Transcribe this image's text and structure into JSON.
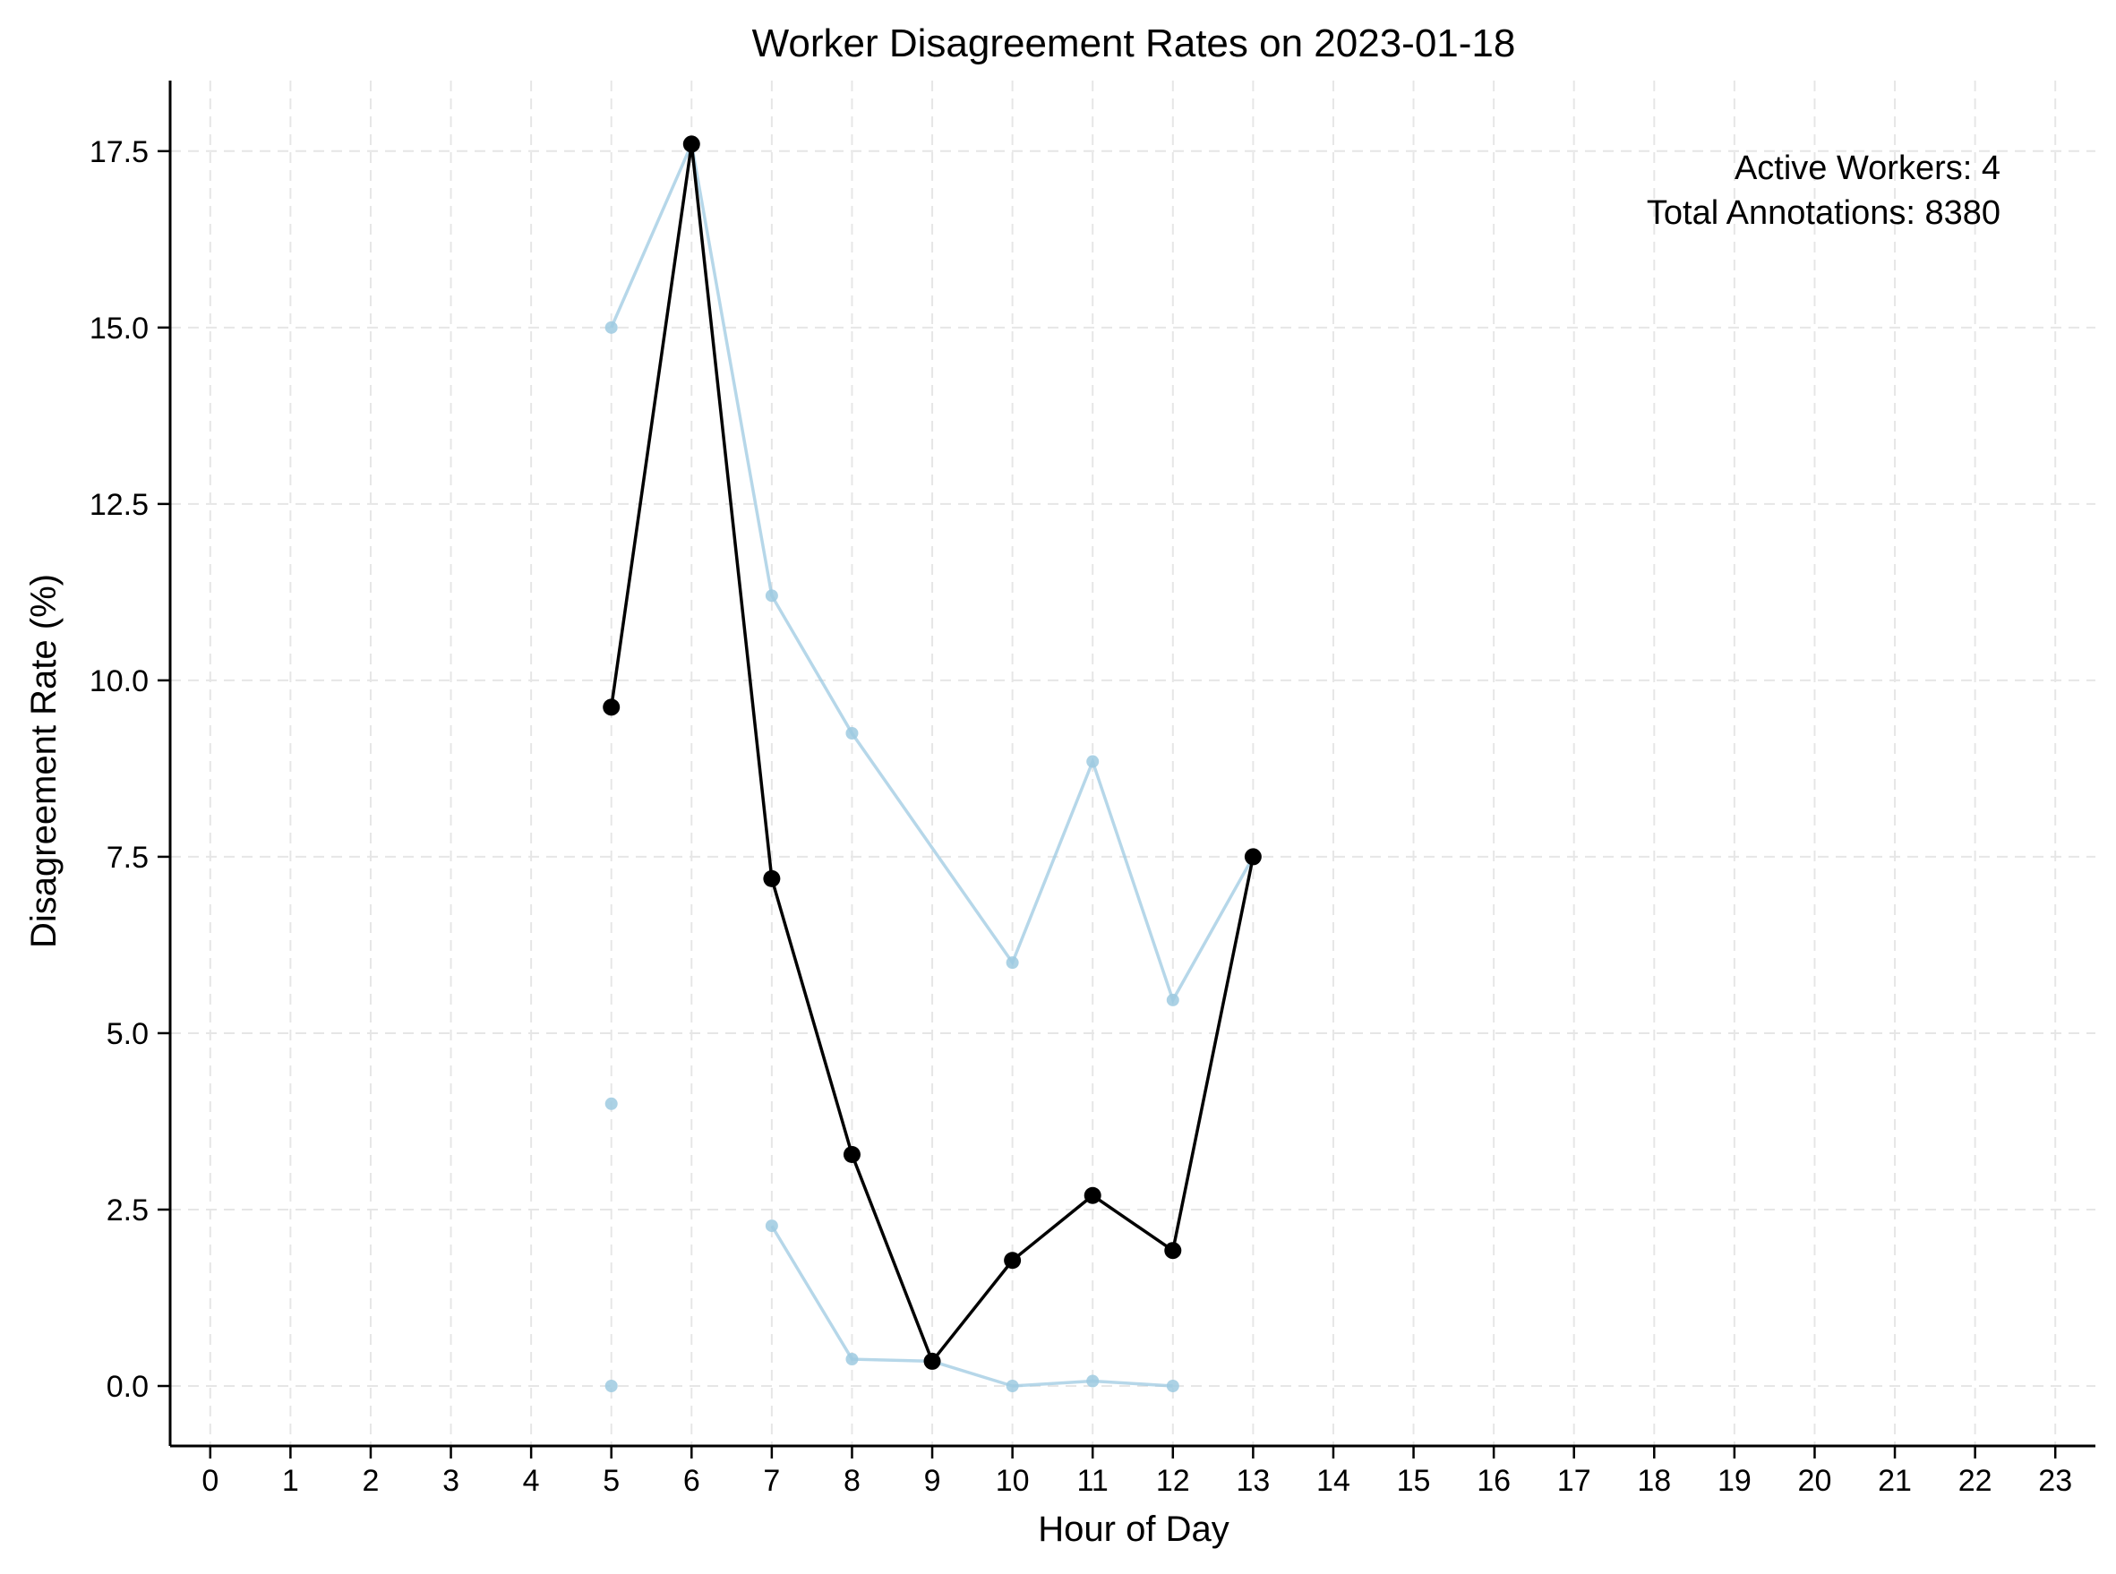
{
  "chart_data": {
    "type": "line",
    "title": "Worker Disagreement Rates on 2023-01-18",
    "xlabel": "Hour of Day",
    "ylabel": "Disagreement Rate (%)",
    "xlim": [
      -0.5,
      23.5
    ],
    "ylim": [
      -0.85,
      18.5
    ],
    "x_ticks": [
      0,
      1,
      2,
      3,
      4,
      5,
      6,
      7,
      8,
      9,
      10,
      11,
      12,
      13,
      14,
      15,
      16,
      17,
      18,
      19,
      20,
      21,
      22,
      23
    ],
    "y_ticks": [
      0.0,
      2.5,
      5.0,
      7.5,
      10.0,
      12.5,
      15.0,
      17.5
    ],
    "y_tick_labels": [
      "0.0",
      "2.5",
      "5.0",
      "7.5",
      "10.0",
      "12.5",
      "15.0",
      "17.5"
    ],
    "grid": true,
    "colors": {
      "worker": "#9ecae1",
      "average": "#000000"
    },
    "worker_series": [
      {
        "points": [
          [
            5,
            15.0
          ],
          [
            6,
            17.6
          ],
          [
            7,
            11.2
          ],
          [
            8,
            9.25
          ],
          [
            10,
            6.0
          ],
          [
            11,
            8.85
          ],
          [
            12,
            5.47
          ],
          [
            13,
            7.5
          ]
        ]
      },
      {
        "points": [
          [
            5,
            4.0
          ]
        ]
      },
      {
        "points": [
          [
            7,
            2.27
          ],
          [
            8,
            0.38
          ],
          [
            9,
            0.35
          ],
          [
            10,
            0.0
          ],
          [
            11,
            0.07
          ],
          [
            12,
            0.0
          ]
        ]
      },
      {
        "points": [
          [
            5,
            0.0
          ]
        ]
      }
    ],
    "average_series": {
      "points": [
        [
          5,
          9.62
        ],
        [
          6,
          17.6
        ],
        [
          7,
          7.19
        ],
        [
          8,
          3.28
        ],
        [
          9,
          0.35
        ],
        [
          10,
          1.78
        ],
        [
          11,
          2.7
        ],
        [
          12,
          1.92
        ],
        [
          13,
          7.5
        ]
      ]
    },
    "annotations": {
      "active_workers": "Active Workers: 4",
      "total_annotations": "Total Annotations: 8380"
    }
  }
}
